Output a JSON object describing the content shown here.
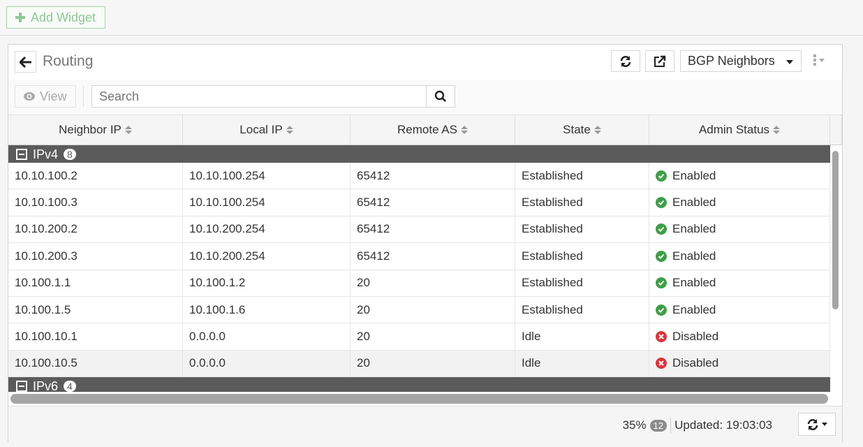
{
  "toolbar": {
    "add_widget": "Add Widget"
  },
  "widget": {
    "title": "Routing",
    "dropdown": "BGP Neighbors",
    "view": "View",
    "search_placeholder": "Search"
  },
  "table": {
    "columns": [
      "Neighbor IP",
      "Local IP",
      "Remote AS",
      "State",
      "Admin Status"
    ],
    "groups": [
      {
        "label": "IPv4",
        "count": "8",
        "rows": [
          [
            "10.10.100.2",
            "10.10.100.254",
            "65412",
            "Established",
            "Enabled"
          ],
          [
            "10.10.100.3",
            "10.10.100.254",
            "65412",
            "Established",
            "Enabled"
          ],
          [
            "10.10.200.2",
            "10.10.200.254",
            "65412",
            "Established",
            "Enabled"
          ],
          [
            "10.10.200.3",
            "10.10.200.254",
            "65412",
            "Established",
            "Enabled"
          ],
          [
            "10.100.1.1",
            "10.100.1.2",
            "20",
            "Established",
            "Enabled"
          ],
          [
            "10.100.1.5",
            "10.100.1.6",
            "20",
            "Established",
            "Enabled"
          ],
          [
            "10.100.10.1",
            "0.0.0.0",
            "20",
            "Idle",
            "Disabled"
          ],
          [
            "10.100.10.5",
            "0.0.0.0",
            "20",
            "Idle",
            "Disabled"
          ]
        ]
      },
      {
        "label": "IPv6",
        "count": "4",
        "rows": []
      }
    ]
  },
  "footer": {
    "percent": "35%",
    "count": "12",
    "updated": "Updated: 19:03:03"
  },
  "colors": {
    "enabled": "#3f9e48",
    "disabled": "#d9363e",
    "group_bar": "#5b5b5b"
  }
}
